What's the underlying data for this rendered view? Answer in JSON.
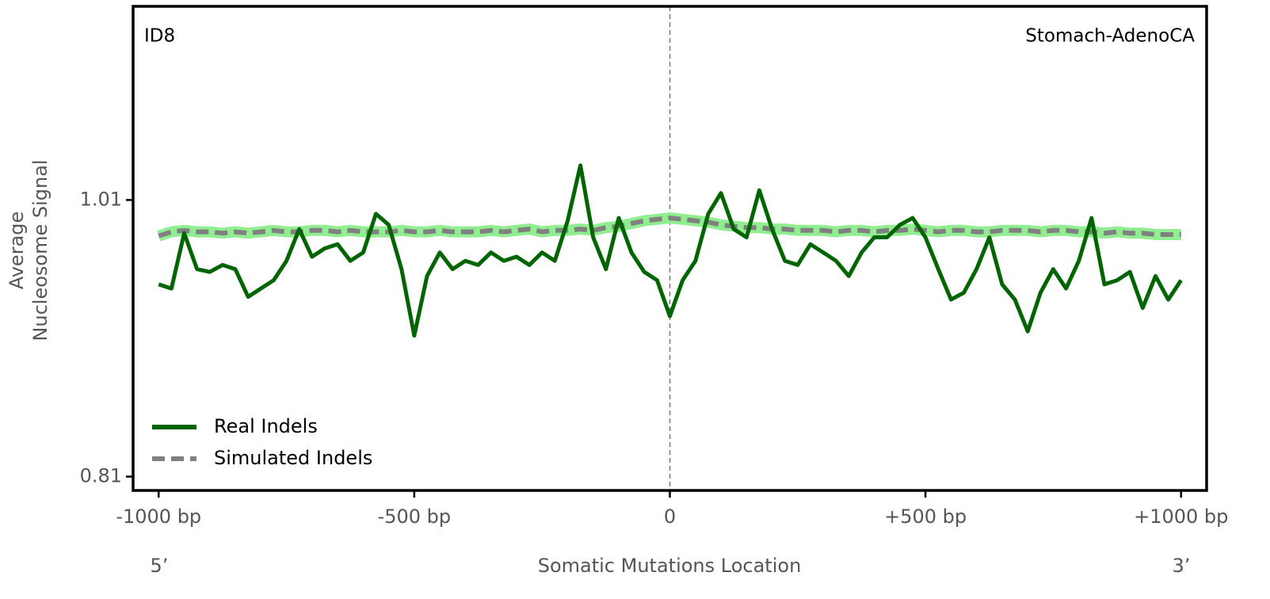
{
  "chart_data": {
    "type": "line",
    "annotations": [
      "ID8",
      "Stomach-AdenoCA"
    ],
    "ylabel": [
      "Average",
      "Nucleosome Signal"
    ],
    "xlabel": "Somatic Mutations Location",
    "x_end_labels": [
      "5’",
      "3’"
    ],
    "x": [
      -1000,
      -975,
      -950,
      -925,
      -900,
      -875,
      -850,
      -825,
      -800,
      -775,
      -750,
      -725,
      -700,
      -675,
      -650,
      -625,
      -600,
      -575,
      -550,
      -525,
      -500,
      -475,
      -450,
      -425,
      -400,
      -375,
      -350,
      -325,
      -300,
      -275,
      -250,
      -225,
      -200,
      -175,
      -150,
      -125,
      -100,
      -75,
      -50,
      -25,
      0,
      25,
      50,
      75,
      100,
      125,
      150,
      175,
      200,
      225,
      250,
      275,
      300,
      325,
      350,
      375,
      400,
      425,
      450,
      475,
      500,
      525,
      550,
      575,
      600,
      625,
      650,
      675,
      700,
      725,
      750,
      775,
      800,
      825,
      850,
      875,
      900,
      925,
      950,
      975,
      1000
    ],
    "series": [
      {
        "name": "Real Indels",
        "color": "#006400",
        "dashed": false,
        "values": [
          0.949,
          0.946,
          0.986,
          0.96,
          0.958,
          0.963,
          0.96,
          0.94,
          0.946,
          0.952,
          0.966,
          0.989,
          0.969,
          0.975,
          0.978,
          0.966,
          0.972,
          1.0,
          0.992,
          0.96,
          0.912,
          0.955,
          0.972,
          0.96,
          0.966,
          0.963,
          0.972,
          0.966,
          0.969,
          0.963,
          0.972,
          0.966,
          0.995,
          1.035,
          0.983,
          0.96,
          0.997,
          0.972,
          0.958,
          0.952,
          0.926,
          0.952,
          0.966,
          1.0,
          1.015,
          0.989,
          0.983,
          1.017,
          0.989,
          0.966,
          0.963,
          0.978,
          0.972,
          0.966,
          0.955,
          0.972,
          0.983,
          0.983,
          0.992,
          0.997,
          0.983,
          0.96,
          0.938,
          0.943,
          0.96,
          0.983,
          0.949,
          0.938,
          0.915,
          0.943,
          0.96,
          0.946,
          0.966,
          0.997,
          0.949,
          0.952,
          0.958,
          0.932,
          0.955,
          0.938,
          0.952
        ]
      },
      {
        "name": "Simulated Indels",
        "color": "#808080",
        "band_color": "#90ee90",
        "dashed": true,
        "values": [
          0.984,
          0.987,
          0.988,
          0.987,
          0.987,
          0.986,
          0.987,
          0.986,
          0.987,
          0.988,
          0.987,
          0.987,
          0.988,
          0.988,
          0.987,
          0.988,
          0.987,
          0.987,
          0.987,
          0.988,
          0.987,
          0.987,
          0.988,
          0.987,
          0.987,
          0.987,
          0.988,
          0.987,
          0.988,
          0.989,
          0.987,
          0.988,
          0.988,
          0.989,
          0.988,
          0.99,
          0.991,
          0.993,
          0.995,
          0.996,
          0.997,
          0.996,
          0.995,
          0.994,
          0.992,
          0.991,
          0.99,
          0.99,
          0.989,
          0.989,
          0.988,
          0.988,
          0.988,
          0.987,
          0.988,
          0.988,
          0.987,
          0.988,
          0.988,
          0.989,
          0.988,
          0.987,
          0.988,
          0.988,
          0.987,
          0.987,
          0.988,
          0.988,
          0.988,
          0.987,
          0.988,
          0.988,
          0.987,
          0.987,
          0.986,
          0.987,
          0.986,
          0.986,
          0.985,
          0.985,
          0.985
        ]
      }
    ],
    "vline": 0,
    "xlim": [
      -1050,
      1050
    ],
    "ylim": [
      0.8,
      1.15
    ],
    "xticks": [
      {
        "value": -1000,
        "label": "-1000 bp"
      },
      {
        "value": -500,
        "label": "-500 bp"
      },
      0,
      {
        "value": 500,
        "label": "+500 bp"
      },
      {
        "value": 1000,
        "label": "+1000 bp"
      }
    ],
    "yticks": [
      0.81,
      1.01
    ],
    "legend": "lower left"
  }
}
